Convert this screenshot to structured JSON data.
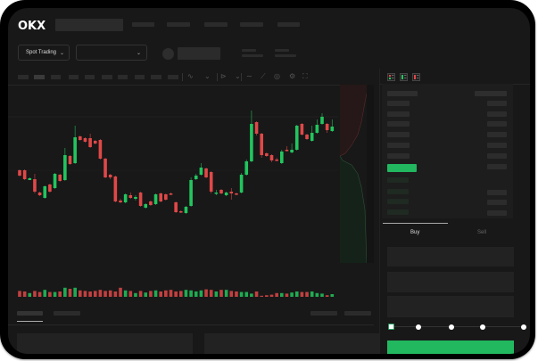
{
  "header": {
    "logo": "OKX"
  },
  "toolbar": {
    "market_selector": "Spot Trading",
    "pair_dropdown": ""
  },
  "order_panel": {
    "tabs": [
      {
        "label": "Buy",
        "active": true
      },
      {
        "label": "Sell",
        "active": false
      }
    ],
    "slider_percent": 0
  },
  "colors": {
    "up": "#22c55e",
    "down": "#e04848",
    "background": "#181818",
    "accent": "#22b860"
  },
  "icons": [
    "chevron-down-icon",
    "candle-type-icon",
    "indicator-icon",
    "draw-line-icon",
    "ruler-icon",
    "camera-icon",
    "settings-icon",
    "fullscreen-icon",
    "orderbook-both-icon",
    "orderbook-bids-icon",
    "orderbook-asks-icon"
  ],
  "chart_data": {
    "type": "candlestick",
    "candles": [
      [
        118,
        119,
        111,
        112
      ],
      [
        118,
        119,
        107,
        108
      ],
      [
        107,
        110,
        107,
        109
      ],
      [
        108,
        114,
        92,
        94
      ],
      [
        93,
        94,
        89,
        90
      ],
      [
        87,
        101,
        86,
        100
      ],
      [
        102,
        103,
        93,
        94
      ],
      [
        98,
        115,
        97,
        114
      ],
      [
        113,
        114,
        105,
        106
      ],
      [
        107,
        143,
        106,
        135
      ],
      [
        134,
        135,
        124,
        125
      ],
      [
        126,
        168,
        125,
        155
      ],
      [
        156,
        157,
        151,
        152
      ],
      [
        154,
        155,
        149,
        150
      ],
      [
        154,
        159,
        143,
        144
      ],
      [
        151,
        152,
        147,
        148
      ],
      [
        152,
        153,
        130,
        131
      ],
      [
        131,
        132,
        109,
        110
      ],
      [
        113,
        114,
        108,
        110
      ],
      [
        111,
        112,
        82,
        83
      ],
      [
        84,
        86,
        81,
        82
      ],
      [
        82,
        92,
        81,
        91
      ],
      [
        90,
        93,
        86,
        87
      ],
      [
        86,
        90,
        84,
        88
      ],
      [
        93,
        94,
        77,
        78
      ],
      [
        76,
        81,
        75,
        80
      ],
      [
        83,
        84,
        78,
        79
      ],
      [
        80,
        92,
        79,
        91
      ],
      [
        92,
        93,
        82,
        83
      ],
      [
        91,
        92,
        84,
        85
      ],
      [
        92,
        93,
        90,
        91
      ],
      [
        82,
        83,
        70,
        71
      ],
      [
        72,
        73,
        70,
        71
      ],
      [
        70,
        78,
        69,
        77
      ],
      [
        78,
        110,
        77,
        107
      ],
      [
        108,
        114,
        107,
        112
      ],
      [
        113,
        126,
        112,
        121
      ],
      [
        120,
        121,
        109,
        110
      ],
      [
        116,
        117,
        92,
        94
      ],
      [
        92,
        96,
        90,
        93
      ],
      [
        96,
        97,
        91,
        92
      ],
      [
        90,
        94,
        89,
        93
      ],
      [
        94,
        98,
        85,
        92
      ],
      [
        92,
        93,
        90,
        91
      ],
      [
        93,
        115,
        92,
        113
      ],
      [
        113,
        130,
        112,
        128
      ],
      [
        128,
        185,
        127,
        170
      ],
      [
        172,
        173,
        157,
        159
      ],
      [
        159,
        160,
        132,
        135
      ],
      [
        137,
        138,
        133,
        134
      ],
      [
        135,
        136,
        127,
        129
      ],
      [
        130,
        132,
        128,
        129
      ],
      [
        126,
        141,
        125,
        139
      ],
      [
        141,
        145,
        139,
        140
      ],
      [
        138,
        148,
        137,
        141
      ],
      [
        141,
        169,
        140,
        168
      ],
      [
        170,
        171,
        157,
        158
      ],
      [
        158,
        159,
        152,
        153
      ],
      [
        151,
        168,
        150,
        160
      ],
      [
        160,
        175,
        159,
        169
      ],
      [
        170,
        182,
        169,
        178
      ],
      [
        170,
        171,
        160,
        163
      ],
      [
        162,
        175,
        161,
        167
      ]
    ],
    "volume": [
      11,
      10,
      7,
      11,
      9,
      13,
      9,
      9,
      10,
      17,
      15,
      17,
      12,
      11,
      10,
      11,
      13,
      11,
      12,
      10,
      17,
      12,
      11,
      7,
      11,
      8,
      11,
      12,
      10,
      12,
      13,
      10,
      11,
      13,
      12,
      10,
      12,
      14,
      13,
      10,
      13,
      13,
      11,
      10,
      9,
      9,
      6,
      10,
      2,
      3,
      4,
      7,
      7,
      6,
      8,
      10,
      9,
      9,
      10,
      7,
      6,
      3,
      5
    ]
  }
}
